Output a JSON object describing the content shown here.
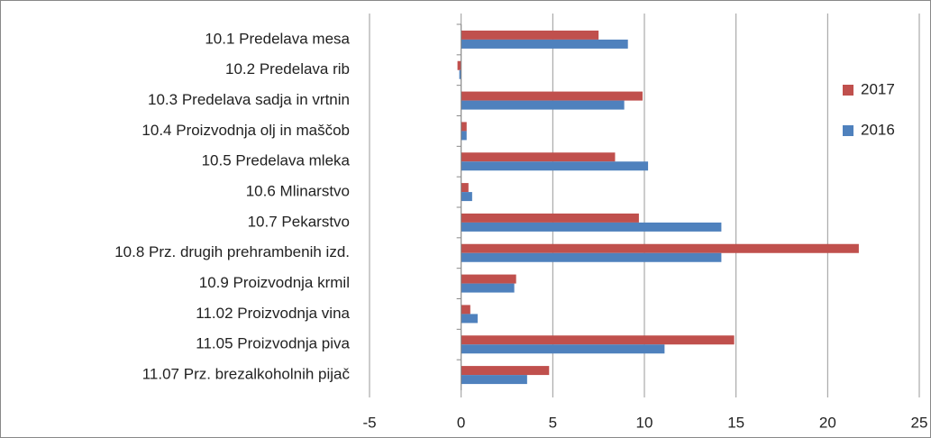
{
  "chart_data": {
    "type": "hbar",
    "categories": [
      "10.1 Predelava mesa",
      "10.2 Predelava rib",
      "10.3 Predelava sadja in vrtnin",
      "10.4 Proizvodnja olj in maščob",
      "10.5 Predelava mleka",
      "10.6 Mlinarstvo",
      "10.7 Pekarstvo",
      "10.8 Prz. drugih prehrambenih izd.",
      "10.9 Proizvodnja krmil",
      "11.02 Proizvodnja vina",
      "11.05 Proizvodnja piva",
      "11.07 Prz. brezalkoholnih pijač"
    ],
    "series": [
      {
        "name": "2017",
        "color": "#c0504d",
        "values": [
          7.5,
          -0.2,
          9.9,
          0.3,
          8.4,
          0.4,
          9.7,
          21.7,
          3.0,
          0.5,
          14.9,
          4.8
        ]
      },
      {
        "name": "2016",
        "color": "#4f81bd",
        "values": [
          9.1,
          -0.1,
          8.9,
          0.3,
          10.2,
          0.6,
          14.2,
          14.2,
          2.9,
          0.9,
          11.1,
          3.6
        ]
      }
    ],
    "xlim": [
      -5,
      25
    ],
    "xticks": [
      -5,
      0,
      5,
      10,
      15,
      20,
      25
    ],
    "grid": true,
    "legend": "right"
  }
}
